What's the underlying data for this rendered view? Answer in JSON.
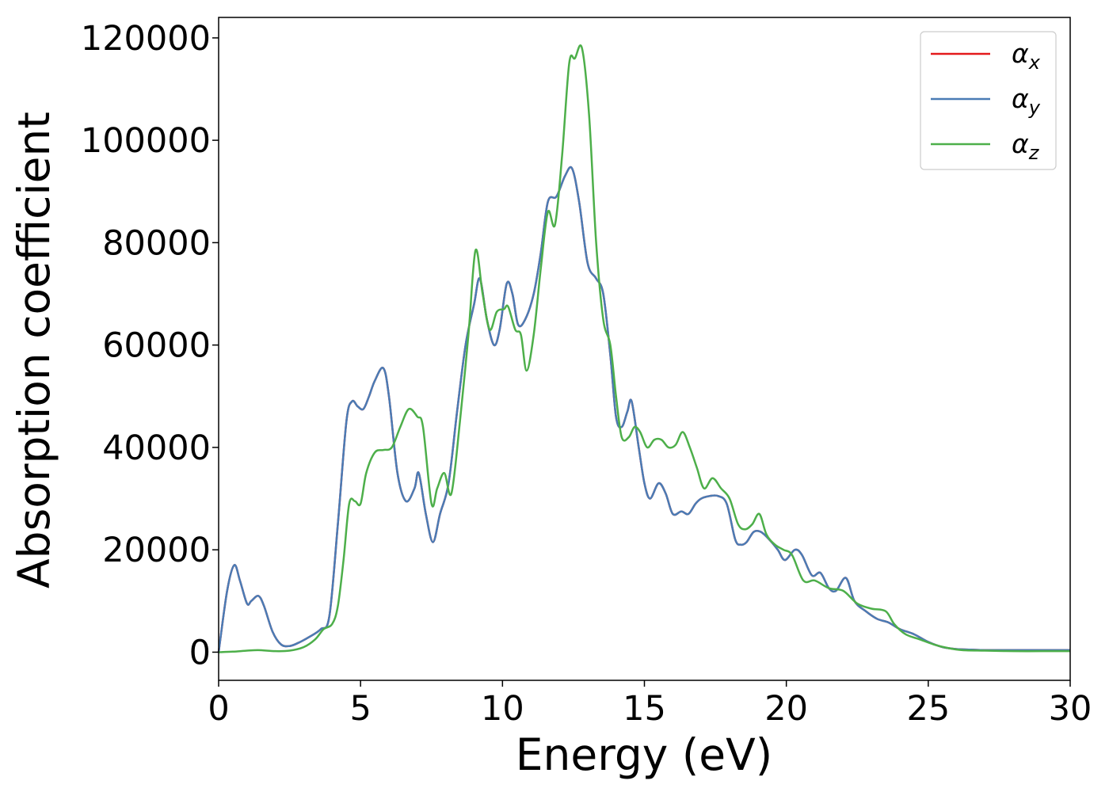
{
  "chart_data": {
    "type": "line",
    "xlabel": "Energy (eV)",
    "ylabel": "Absorption coefficient",
    "xlim": [
      0,
      30
    ],
    "ylim": [
      -5500,
      124000
    ],
    "xticks": [
      0,
      5,
      10,
      15,
      20,
      25,
      30
    ],
    "xtick_labels": [
      "0",
      "5",
      "10",
      "15",
      "20",
      "25",
      "30"
    ],
    "yticks": [
      0,
      20000,
      40000,
      60000,
      80000,
      100000,
      120000
    ],
    "ytick_labels": [
      "0",
      "20000",
      "40000",
      "60000",
      "80000",
      "100000",
      "120000"
    ],
    "grid": false,
    "legend_position": "top-right",
    "series": [
      {
        "name": "α",
        "sub": "x",
        "color": "#e41a1c",
        "x": [
          0,
          0.3,
          0.55,
          0.75,
          1.0,
          1.15,
          1.4,
          1.6,
          1.9,
          2.2,
          2.5,
          2.8,
          3.2,
          3.6,
          3.9,
          4.2,
          4.5,
          4.7,
          4.9,
          5.1,
          5.3,
          5.5,
          5.8,
          6.0,
          6.3,
          6.6,
          6.9,
          7.05,
          7.3,
          7.55,
          7.8,
          8.1,
          8.4,
          8.7,
          9.0,
          9.2,
          9.45,
          9.7,
          9.9,
          10.15,
          10.35,
          10.55,
          10.8,
          11.1,
          11.35,
          11.6,
          11.9,
          12.2,
          12.45,
          12.7,
          13.0,
          13.3,
          13.55,
          13.8,
          14.0,
          14.2,
          14.4,
          14.55,
          14.8,
          15.0,
          15.2,
          15.5,
          15.75,
          16.0,
          16.3,
          16.55,
          16.8,
          17.0,
          17.3,
          17.6,
          17.9,
          18.2,
          18.4,
          18.6,
          18.85,
          19.1,
          19.4,
          19.7,
          19.95,
          20.3,
          20.55,
          20.9,
          21.2,
          21.5,
          21.75,
          22.1,
          22.4,
          22.8,
          23.2,
          23.6,
          24.0,
          24.5,
          25.0,
          25.5,
          26.0,
          26.5,
          27.0,
          28.0,
          29.0,
          30.0
        ],
        "values": [
          0,
          12000,
          17000,
          14000,
          9500,
          10000,
          11000,
          9000,
          4000,
          1500,
          1200,
          1800,
          3000,
          4500,
          7000,
          25000,
          45000,
          49000,
          48000,
          47500,
          50000,
          53000,
          55500,
          50000,
          35000,
          29500,
          32000,
          35000,
          27000,
          21500,
          27000,
          33000,
          47000,
          60000,
          68000,
          73000,
          65000,
          60000,
          63000,
          72000,
          70000,
          64000,
          65000,
          70000,
          78000,
          88000,
          89000,
          93000,
          94500,
          88000,
          76000,
          73000,
          70000,
          58000,
          46000,
          44000,
          47000,
          49000,
          40000,
          33000,
          30000,
          33000,
          31000,
          27000,
          27500,
          27000,
          29000,
          30000,
          30500,
          30500,
          29000,
          22000,
          21000,
          21500,
          23500,
          23500,
          22000,
          20000,
          18000,
          20000,
          19000,
          15000,
          15500,
          12500,
          12000,
          14500,
          10000,
          8000,
          6500,
          5800,
          4500,
          3500,
          2000,
          1000,
          600,
          500,
          400,
          400,
          400,
          400
        ]
      },
      {
        "name": "α",
        "sub": "y",
        "color": "#4a7cb5",
        "x": [
          0,
          0.3,
          0.55,
          0.75,
          1.0,
          1.15,
          1.4,
          1.6,
          1.9,
          2.2,
          2.5,
          2.8,
          3.2,
          3.6,
          3.9,
          4.2,
          4.5,
          4.7,
          4.9,
          5.1,
          5.3,
          5.5,
          5.8,
          6.0,
          6.3,
          6.6,
          6.9,
          7.05,
          7.3,
          7.55,
          7.8,
          8.1,
          8.4,
          8.7,
          9.0,
          9.2,
          9.45,
          9.7,
          9.9,
          10.15,
          10.35,
          10.55,
          10.8,
          11.1,
          11.35,
          11.6,
          11.9,
          12.2,
          12.45,
          12.7,
          13.0,
          13.3,
          13.55,
          13.8,
          14.0,
          14.2,
          14.4,
          14.55,
          14.8,
          15.0,
          15.2,
          15.5,
          15.75,
          16.0,
          16.3,
          16.55,
          16.8,
          17.0,
          17.3,
          17.6,
          17.9,
          18.2,
          18.4,
          18.6,
          18.85,
          19.1,
          19.4,
          19.7,
          19.95,
          20.3,
          20.55,
          20.9,
          21.2,
          21.5,
          21.75,
          22.1,
          22.4,
          22.8,
          23.2,
          23.6,
          24.0,
          24.5,
          25.0,
          25.5,
          26.0,
          26.5,
          27.0,
          28.0,
          29.0,
          30.0
        ],
        "values": [
          0,
          12000,
          17000,
          14000,
          9500,
          10000,
          11000,
          9000,
          4000,
          1500,
          1200,
          1800,
          3000,
          4500,
          7000,
          25000,
          45000,
          49000,
          48000,
          47500,
          50000,
          53000,
          55500,
          50000,
          35000,
          29500,
          32000,
          35000,
          27000,
          21500,
          27000,
          33000,
          47000,
          60000,
          68000,
          73000,
          65000,
          60000,
          63000,
          72000,
          70000,
          64000,
          65000,
          70000,
          78000,
          88000,
          89000,
          93000,
          94500,
          88000,
          76000,
          73000,
          70000,
          58000,
          46000,
          44000,
          47000,
          49000,
          40000,
          33000,
          30000,
          33000,
          31000,
          27000,
          27500,
          27000,
          29000,
          30000,
          30500,
          30500,
          29000,
          22000,
          21000,
          21500,
          23500,
          23500,
          22000,
          20000,
          18000,
          20000,
          19000,
          15000,
          15500,
          12500,
          12000,
          14500,
          10000,
          8000,
          6500,
          5800,
          4500,
          3500,
          2000,
          1000,
          600,
          500,
          400,
          400,
          400,
          400
        ]
      },
      {
        "name": "α",
        "sub": "z",
        "color": "#4daf4a",
        "x": [
          0,
          0.5,
          1.0,
          1.4,
          2.0,
          2.5,
          3.0,
          3.4,
          3.7,
          4.0,
          4.2,
          4.4,
          4.6,
          4.8,
          5.0,
          5.2,
          5.5,
          5.8,
          6.1,
          6.4,
          6.7,
          7.0,
          7.2,
          7.5,
          7.7,
          7.95,
          8.2,
          8.5,
          8.8,
          9.05,
          9.3,
          9.55,
          9.8,
          10.05,
          10.2,
          10.45,
          10.65,
          10.85,
          11.1,
          11.35,
          11.6,
          11.85,
          12.1,
          12.35,
          12.55,
          12.8,
          13.05,
          13.3,
          13.55,
          13.8,
          14.0,
          14.2,
          14.45,
          14.65,
          14.85,
          15.1,
          15.35,
          15.6,
          15.85,
          16.1,
          16.35,
          16.6,
          16.85,
          17.1,
          17.4,
          17.7,
          18.0,
          18.3,
          18.55,
          18.8,
          19.05,
          19.3,
          19.6,
          19.9,
          20.2,
          20.6,
          21.0,
          21.5,
          22.0,
          22.5,
          23.0,
          23.5,
          23.8,
          24.2,
          24.7,
          25.2,
          25.7,
          26.2,
          27.0,
          28.0,
          29.0,
          30.0
        ],
        "values": [
          0,
          100,
          300,
          400,
          200,
          300,
          1000,
          2500,
          4500,
          5500,
          9000,
          18000,
          29000,
          29500,
          29000,
          35000,
          39000,
          39500,
          40000,
          44000,
          47500,
          46000,
          44000,
          29000,
          32000,
          35000,
          31000,
          45000,
          62000,
          78500,
          70000,
          63000,
          66500,
          67000,
          67500,
          63000,
          62000,
          55000,
          62000,
          75000,
          86000,
          83500,
          97000,
          115000,
          116000,
          118000,
          105000,
          80000,
          65000,
          60000,
          50000,
          42000,
          42000,
          44000,
          43000,
          40000,
          41500,
          41500,
          40000,
          40500,
          43000,
          40000,
          36000,
          32000,
          34000,
          32000,
          30000,
          25000,
          24000,
          25000,
          27000,
          23000,
          21000,
          20000,
          19000,
          14000,
          14000,
          12500,
          12000,
          9500,
          8500,
          8000,
          5500,
          3500,
          2500,
          1500,
          800,
          400,
          300,
          200,
          200,
          200
        ]
      }
    ]
  }
}
